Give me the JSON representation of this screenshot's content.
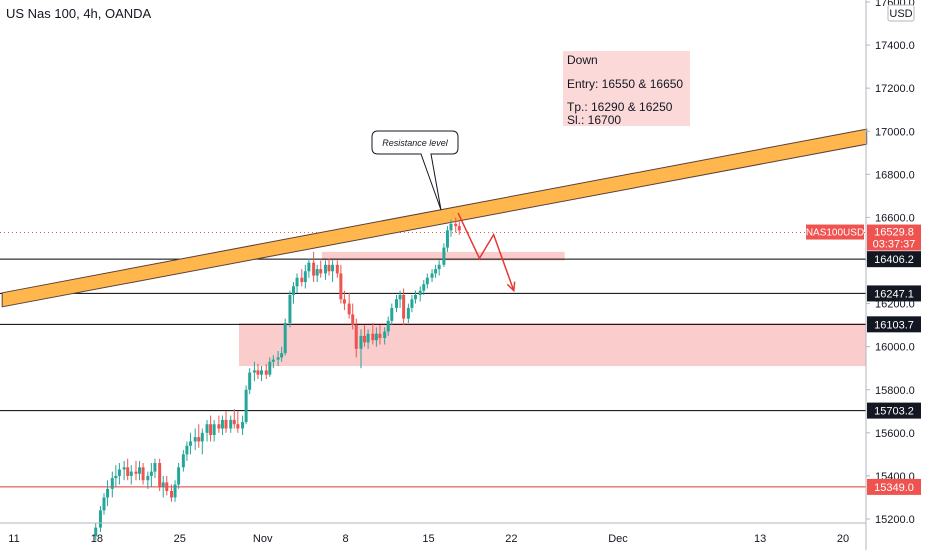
{
  "chart_data": {
    "type": "candlestick",
    "title": "US Nas 100, 4h, OANDA",
    "currency": "USD",
    "ylim": [
      15100,
      17700
    ],
    "y_ticks": [
      15200,
      15400,
      15600,
      15800,
      16000,
      16200,
      16400,
      16600,
      16800,
      17000,
      17200,
      17400,
      17600
    ],
    "x_ticks": [
      {
        "label": "11",
        "day": 11
      },
      {
        "label": "18",
        "day": 18
      },
      {
        "label": "25",
        "day": 25
      },
      {
        "label": "Nov",
        "day": 32
      },
      {
        "label": "8",
        "day": 39
      },
      {
        "label": "15",
        "day": 46
      },
      {
        "label": "22",
        "day": 53
      },
      {
        "label": "Dec",
        "day": 62
      },
      {
        "label": "13",
        "day": 74
      },
      {
        "label": "20",
        "day": 81
      }
    ],
    "xlim": [
      10,
      84
    ],
    "candles": [
      [
        17.9,
        15120,
        15180,
        15100,
        15160
      ],
      [
        18.3,
        15160,
        15260,
        15140,
        15240
      ],
      [
        18.6,
        15240,
        15320,
        15220,
        15300
      ],
      [
        18.9,
        15300,
        15380,
        15260,
        15340
      ],
      [
        19.3,
        15340,
        15420,
        15300,
        15390
      ],
      [
        19.6,
        15390,
        15450,
        15350,
        15400
      ],
      [
        19.9,
        15400,
        15460,
        15360,
        15430
      ],
      [
        20.3,
        15430,
        15470,
        15380,
        15440
      ],
      [
        20.6,
        15440,
        15480,
        15380,
        15400
      ],
      [
        20.9,
        15400,
        15450,
        15360,
        15420
      ],
      [
        21.3,
        15420,
        15470,
        15380,
        15410
      ],
      [
        21.6,
        15410,
        15470,
        15380,
        15440
      ],
      [
        21.9,
        15440,
        15460,
        15360,
        15380
      ],
      [
        22.3,
        15380,
        15420,
        15340,
        15400
      ],
      [
        22.6,
        15400,
        15460,
        15350,
        15420
      ],
      [
        22.9,
        15420,
        15480,
        15390,
        15460
      ],
      [
        23.3,
        15460,
        15480,
        15330,
        15350
      ],
      [
        23.6,
        15350,
        15400,
        15300,
        15370
      ],
      [
        23.9,
        15370,
        15400,
        15310,
        15330
      ],
      [
        24.3,
        15330,
        15360,
        15280,
        15300
      ],
      [
        24.6,
        15300,
        15380,
        15280,
        15360
      ],
      [
        24.9,
        15360,
        15460,
        15340,
        15440
      ],
      [
        25.3,
        15440,
        15520,
        15420,
        15500
      ],
      [
        25.6,
        15500,
        15560,
        15470,
        15540
      ],
      [
        25.9,
        15540,
        15600,
        15500,
        15560
      ],
      [
        26.3,
        15560,
        15620,
        15520,
        15580
      ],
      [
        26.6,
        15580,
        15640,
        15530,
        15560
      ],
      [
        26.9,
        15560,
        15620,
        15500,
        15600
      ],
      [
        27.3,
        15600,
        15660,
        15560,
        15640
      ],
      [
        27.6,
        15640,
        15680,
        15560,
        15590
      ],
      [
        27.9,
        15590,
        15660,
        15560,
        15640
      ],
      [
        28.3,
        15640,
        15680,
        15600,
        15620
      ],
      [
        28.6,
        15620,
        15680,
        15590,
        15660
      ],
      [
        28.9,
        15660,
        15700,
        15600,
        15620
      ],
      [
        29.3,
        15620,
        15680,
        15600,
        15660
      ],
      [
        29.6,
        15660,
        15710,
        15620,
        15640
      ],
      [
        29.9,
        15640,
        15700,
        15600,
        15620
      ],
      [
        30.3,
        15620,
        15680,
        15590,
        15650
      ],
      [
        30.6,
        15650,
        15820,
        15640,
        15800
      ],
      [
        30.9,
        15800,
        15900,
        15780,
        15880
      ],
      [
        31.3,
        15880,
        15930,
        15840,
        15890
      ],
      [
        31.6,
        15890,
        15920,
        15850,
        15870
      ],
      [
        31.9,
        15870,
        15910,
        15840,
        15890
      ],
      [
        32.3,
        15890,
        15920,
        15850,
        15870
      ],
      [
        32.6,
        15870,
        15950,
        15860,
        15930
      ],
      [
        32.9,
        15930,
        15960,
        15900,
        15940
      ],
      [
        33.3,
        15940,
        15980,
        15910,
        15950
      ],
      [
        33.6,
        15950,
        16000,
        15930,
        15970
      ],
      [
        33.9,
        15970,
        16130,
        15960,
        16110
      ],
      [
        34.3,
        16110,
        16260,
        16090,
        16240
      ],
      [
        34.6,
        16240,
        16300,
        16200,
        16280
      ],
      [
        34.9,
        16280,
        16340,
        16250,
        16320
      ],
      [
        35.3,
        16320,
        16360,
        16280,
        16300
      ],
      [
        35.6,
        16300,
        16380,
        16270,
        16350
      ],
      [
        35.9,
        16350,
        16410,
        16320,
        16390
      ],
      [
        36.3,
        16390,
        16440,
        16300,
        16330
      ],
      [
        36.6,
        16330,
        16380,
        16300,
        16360
      ],
      [
        36.9,
        16360,
        16400,
        16320,
        16340
      ],
      [
        37.3,
        16340,
        16400,
        16310,
        16380
      ],
      [
        37.6,
        16380,
        16410,
        16330,
        16350
      ],
      [
        37.9,
        16350,
        16400,
        16300,
        16380
      ],
      [
        38.3,
        16380,
        16400,
        16320,
        16340
      ],
      [
        38.6,
        16340,
        16380,
        16200,
        16220
      ],
      [
        38.9,
        16220,
        16260,
        16170,
        16200
      ],
      [
        39.3,
        16200,
        16250,
        16130,
        16150
      ],
      [
        39.6,
        16150,
        16200,
        16080,
        16100
      ],
      [
        39.9,
        16100,
        16130,
        15950,
        15990
      ],
      [
        40.3,
        15990,
        16080,
        15900,
        16050
      ],
      [
        40.6,
        16050,
        16100,
        16000,
        16020
      ],
      [
        40.9,
        16020,
        16080,
        15990,
        16060
      ],
      [
        41.3,
        16060,
        16110,
        16010,
        16030
      ],
      [
        41.6,
        16030,
        16090,
        16000,
        16060
      ],
      [
        41.9,
        16060,
        16100,
        16010,
        16040
      ],
      [
        42.3,
        16040,
        16090,
        16010,
        16070
      ],
      [
        42.6,
        16070,
        16140,
        16050,
        16120
      ],
      [
        42.9,
        16120,
        16200,
        16100,
        16180
      ],
      [
        43.3,
        16180,
        16240,
        16160,
        16220
      ],
      [
        43.6,
        16220,
        16260,
        16180,
        16240
      ],
      [
        43.9,
        16240,
        16270,
        16100,
        16130
      ],
      [
        44.3,
        16130,
        16200,
        16110,
        16180
      ],
      [
        44.6,
        16180,
        16240,
        16160,
        16220
      ],
      [
        44.9,
        16220,
        16260,
        16200,
        16240
      ],
      [
        45.3,
        16240,
        16280,
        16210,
        16260
      ],
      [
        45.6,
        16260,
        16310,
        16240,
        16290
      ],
      [
        45.9,
        16290,
        16340,
        16270,
        16320
      ],
      [
        46.3,
        16320,
        16360,
        16300,
        16340
      ],
      [
        46.6,
        16340,
        16380,
        16320,
        16360
      ],
      [
        46.9,
        16360,
        16400,
        16330,
        16380
      ],
      [
        47.3,
        16380,
        16480,
        16370,
        16460
      ],
      [
        47.6,
        16460,
        16560,
        16440,
        16540
      ],
      [
        47.9,
        16540,
        16590,
        16510,
        16570
      ],
      [
        48.3,
        16570,
        16600,
        16530,
        16560
      ],
      [
        48.6,
        16560,
        16580,
        16520,
        16540
      ]
    ],
    "resistance_channel": {
      "x1": 10,
      "y1_low": 16185,
      "y1_high": 16250,
      "x2": 83,
      "y2_low": 16940,
      "y2_high": 17010
    },
    "horizontal_lines": [
      {
        "value": 16406.2,
        "label": "16406.2",
        "color": "#000000"
      },
      {
        "value": 16247.1,
        "label": "16247.1",
        "color": "#000000"
      },
      {
        "value": 16103.7,
        "label": "16103.7",
        "color": "#000000"
      },
      {
        "value": 15703.2,
        "label": "15703.2",
        "color": "#000000"
      },
      {
        "value": 15349.0,
        "label": "15349.0",
        "color": "#e53935"
      }
    ],
    "zones": [
      {
        "x1": 37.0,
        "x2": 57.5,
        "y1": 16400,
        "y2": 16440
      },
      {
        "x1": 30.0,
        "x2": 84,
        "y1": 15910,
        "y2": 16110
      }
    ],
    "current_price": {
      "value": 16529.8,
      "label": "16529.8",
      "countdown": "03:37:37",
      "symbol": "NAS100USD"
    },
    "projection": [
      [
        48.5,
        16620
      ],
      [
        50.3,
        16410
      ],
      [
        51.5,
        16520
      ],
      [
        53.2,
        16260
      ]
    ],
    "annotations": {
      "callout": "Resistance level",
      "info_lines": [
        "Down",
        "Entry: 16550 & 16650",
        "Tp.: 16290 & 16250",
        "Sl.: 16700"
      ]
    },
    "colors": {
      "up": "#26a69a",
      "down": "#ef5350",
      "channel_fill": "#ffb74d",
      "zone": "#f8bbbb",
      "projection": "#e53935",
      "badge_red": "#ef5350",
      "badge_dark": "#131722"
    }
  }
}
